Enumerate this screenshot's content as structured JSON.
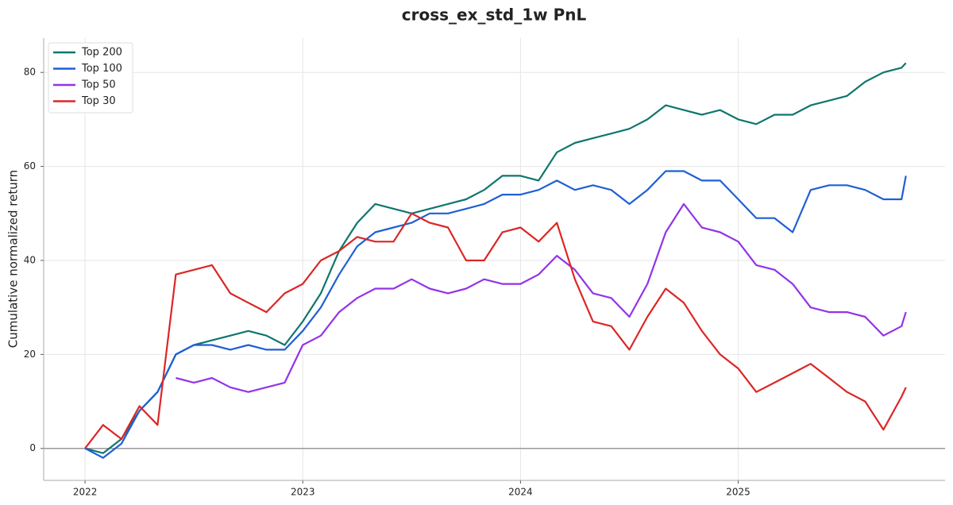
{
  "chart_data": {
    "type": "line",
    "title": "cross_ex_std_1w PnL",
    "y_label": "Cumulative normalized return",
    "x": [
      2022,
      2022.083,
      2022.167,
      2022.25,
      2022.333,
      2022.417,
      2022.5,
      2022.583,
      2022.667,
      2022.75,
      2022.833,
      2022.917,
      2023,
      2023.083,
      2023.167,
      2023.25,
      2023.333,
      2023.417,
      2023.5,
      2023.583,
      2023.667,
      2023.75,
      2023.833,
      2023.917,
      2024,
      2024.083,
      2024.167,
      2024.25,
      2024.333,
      2024.417,
      2024.5,
      2024.583,
      2024.667,
      2024.75,
      2024.833,
      2024.917,
      2025,
      2025.083,
      2025.167,
      2025.25,
      2025.333,
      2025.417,
      2025.5,
      2025.583,
      2025.667,
      2025.75,
      2025.77
    ],
    "series": [
      {
        "name": "Top 200",
        "color": "#0f766e",
        "values": [
          0,
          -1,
          2,
          8,
          12,
          20,
          22,
          23,
          24,
          25,
          24,
          22,
          27,
          33,
          42,
          48,
          52,
          51,
          50,
          51,
          52,
          53,
          55,
          58,
          58,
          57,
          63,
          65,
          66,
          67,
          68,
          70,
          73,
          72,
          71,
          72,
          70,
          69,
          71,
          71,
          73,
          74,
          75,
          78,
          80,
          81,
          82
        ]
      },
      {
        "name": "Top 100",
        "color": "#1f5fd6",
        "values": [
          0,
          -2,
          1,
          8,
          12,
          20,
          22,
          22,
          21,
          22,
          21,
          21,
          25,
          30,
          37,
          43,
          46,
          47,
          48,
          50,
          50,
          51,
          52,
          54,
          54,
          55,
          57,
          55,
          56,
          55,
          52,
          55,
          59,
          59,
          57,
          57,
          53,
          49,
          49,
          46,
          55,
          56,
          56,
          55,
          53,
          53,
          58
        ]
      },
      {
        "name": "Top 50",
        "color": "#9333ea",
        "values": [
          null,
          null,
          null,
          null,
          null,
          15,
          14,
          15,
          13,
          12,
          13,
          14,
          22,
          24,
          29,
          32,
          34,
          34,
          36,
          34,
          33,
          34,
          36,
          35,
          35,
          37,
          41,
          38,
          33,
          32,
          28,
          35,
          46,
          52,
          47,
          46,
          44,
          39,
          38,
          35,
          30,
          29,
          29,
          28,
          24,
          26,
          29
        ]
      },
      {
        "name": "Top 30",
        "color": "#dc2626",
        "values": [
          0,
          5,
          2,
          9,
          5,
          37,
          38,
          39,
          33,
          31,
          29,
          33,
          35,
          40,
          42,
          45,
          44,
          44,
          50,
          48,
          47,
          40,
          40,
          46,
          47,
          44,
          48,
          36,
          27,
          26,
          21,
          28,
          34,
          31,
          25,
          20,
          17,
          12,
          14,
          16,
          18,
          15,
          12,
          10,
          4,
          11,
          13
        ]
      }
    ],
    "xlim": [
      2021.81,
      2025.95
    ],
    "xticks": [
      2022,
      2023,
      2024,
      2025
    ],
    "ylim": [
      -6.8,
      87.3
    ],
    "yticks": [
      0,
      20,
      40,
      60,
      80
    ],
    "grid": true,
    "legend": "upper left"
  }
}
